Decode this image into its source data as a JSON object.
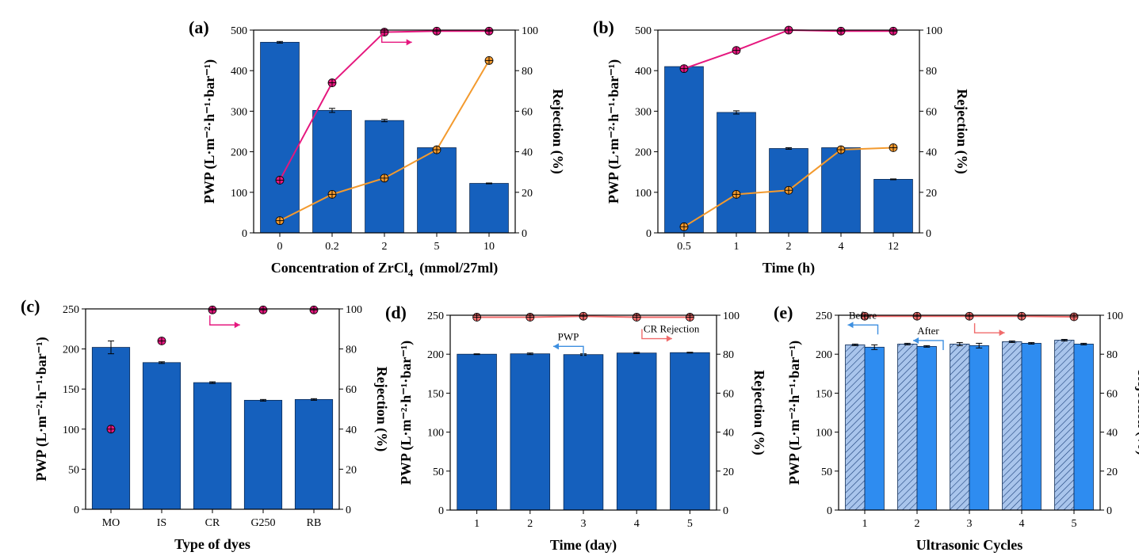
{
  "colors": {
    "bar": "#1560BD",
    "bar_light": "#2E8CF0",
    "bar_hatch_bg": "#A9C5EC",
    "dye_line": "#E5177E",
    "salt_line": "#F39A2E",
    "stability_line": "#F06B6B",
    "arrow_blue": "#3D8FE0",
    "arrow_red": "#F06B6B"
  },
  "chart_data": [
    {
      "type": "bar",
      "label": "(a)",
      "categories": [
        "0",
        "0.2",
        "2",
        "5",
        "10"
      ],
      "xlabel_main": "Concentration of ZrCl",
      "xlabel_sub": "4",
      "xlabel_rest": "(mmol/27ml)",
      "ylabel": "PWP (L·m⁻²·h⁻¹·bar⁻¹)",
      "y2label": "Rejection (%)",
      "ylim": [
        0,
        500
      ],
      "yticks": [
        0,
        100,
        200,
        300,
        400,
        500
      ],
      "y2lim": [
        0,
        100
      ],
      "y2ticks": [
        0,
        20,
        40,
        60,
        80,
        100
      ],
      "bars": [
        {
          "values": [
            470,
            302,
            277,
            210,
            122
          ],
          "errors": [
            2,
            5,
            3,
            2,
            1
          ]
        }
      ],
      "lines": [
        {
          "values": [
            26,
            74,
            99,
            99.5,
            99.5
          ],
          "color_key": "dye_line"
        },
        {
          "values": [
            6,
            19,
            27,
            41,
            85
          ],
          "color_key": "salt_line"
        }
      ],
      "annotations": [
        {
          "kind": "arrow",
          "direction": "right",
          "color_key": "dye_line",
          "at_category": 2.45,
          "at_value": 0.94
        }
      ]
    },
    {
      "type": "bar",
      "label": "(b)",
      "categories": [
        "0.5",
        "1",
        "2",
        "4",
        "12"
      ],
      "xlabel_main": "Time (h)",
      "ylabel": "PWP (L·m⁻²·h⁻¹·bar⁻¹)",
      "y2label": "Rejection (%)",
      "ylim": [
        0,
        500
      ],
      "yticks": [
        0,
        100,
        200,
        300,
        400,
        500
      ],
      "y2lim": [
        0,
        100
      ],
      "y2ticks": [
        0,
        20,
        40,
        60,
        80,
        100
      ],
      "bars": [
        {
          "values": [
            410,
            297,
            208,
            210,
            132
          ],
          "errors": [
            2,
            4,
            2,
            2,
            1
          ]
        }
      ],
      "lines": [
        {
          "values": [
            81,
            90,
            100,
            99.5,
            99.5
          ],
          "color_key": "dye_line"
        },
        {
          "values": [
            3,
            19,
            21,
            41,
            42
          ],
          "color_key": "salt_line"
        }
      ]
    },
    {
      "type": "bar",
      "label": "(c)",
      "categories": [
        "MO",
        "IS",
        "CR",
        "G250",
        "RB"
      ],
      "xlabel_main": "Type of dyes",
      "ylabel": "PWP (L·m⁻²·h⁻¹·bar⁻¹)",
      "y2label": "Rejection (%)",
      "ylim": [
        0,
        250
      ],
      "yticks": [
        0,
        50,
        100,
        150,
        200,
        250
      ],
      "y2lim": [
        0,
        100
      ],
      "y2ticks": [
        0,
        20,
        40,
        60,
        80,
        100
      ],
      "bars": [
        {
          "values": [
            202,
            183,
            158,
            136,
            137
          ],
          "errors": [
            8,
            1,
            1,
            1,
            1
          ]
        }
      ],
      "points": [
        {
          "values": [
            40,
            84,
            99.5,
            99.5,
            99.5
          ],
          "color_key": "dye_line"
        }
      ],
      "annotations": [
        {
          "kind": "arrow",
          "direction": "right",
          "color_key": "dye_line",
          "at_category": 2.45,
          "at_value": 0.92
        }
      ]
    },
    {
      "type": "bar",
      "label": "(d)",
      "categories": [
        "1",
        "2",
        "3",
        "4",
        "5"
      ],
      "xlabel_main": "Time (day)",
      "ylabel": "PWP (L·m⁻²·h⁻¹·bar⁻¹)",
      "y2label": "Rejection (%)",
      "ylim": [
        0,
        250
      ],
      "yticks": [
        0,
        50,
        100,
        150,
        200,
        250
      ],
      "y2lim": [
        0,
        100
      ],
      "y2ticks": [
        0,
        20,
        40,
        60,
        80,
        100
      ],
      "bars": [
        {
          "values": [
            200,
            200.5,
            199.5,
            201.5,
            202
          ],
          "errors": [
            0.5,
            1,
            1,
            0.8,
            0.5
          ]
        }
      ],
      "lines": [
        {
          "values": [
            99,
            99,
            99.5,
            99,
            99
          ],
          "color_key": "stability_line"
        }
      ],
      "annotations": [
        {
          "kind": "arrow",
          "direction": "left",
          "color_key": "arrow_blue",
          "text": "PWP",
          "at_category": 2.5,
          "at_value": 0.84
        },
        {
          "kind": "arrow",
          "direction": "right",
          "color_key": "arrow_red",
          "text": "CR Rejection",
          "at_category": 3.6,
          "at_value": 0.88
        }
      ]
    },
    {
      "type": "bar",
      "label": "(e)",
      "categories": [
        "1",
        "2",
        "3",
        "4",
        "5"
      ],
      "xlabel_main": "Ultrasonic Cycles",
      "ylabel": "PWP (L·m⁻²·h⁻¹·bar⁻¹)",
      "y2label": "Rejection (%)",
      "ylim": [
        0,
        250
      ],
      "yticks": [
        0,
        50,
        100,
        150,
        200,
        250
      ],
      "y2lim": [
        0,
        100
      ],
      "y2ticks": [
        0,
        20,
        40,
        60,
        80,
        100
      ],
      "bars": [
        {
          "name": "Before",
          "values": [
            212,
            213,
            213,
            216,
            218
          ],
          "errors": [
            1,
            1,
            2,
            1,
            1
          ],
          "style": "hatched"
        },
        {
          "name": "After",
          "values": [
            209,
            210,
            211,
            214,
            213
          ],
          "errors": [
            3,
            1,
            3,
            1,
            1
          ],
          "style": "solid"
        }
      ],
      "lines": [
        {
          "values": [
            99.5,
            99.5,
            99.5,
            99.5,
            99.2
          ],
          "color_key": "stability_line"
        }
      ],
      "annotations": [
        {
          "kind": "arrow",
          "direction": "left",
          "color_key": "arrow_blue",
          "text": "Before",
          "at_category": 0.75,
          "at_value": 0.95
        },
        {
          "kind": "arrow",
          "direction": "left",
          "color_key": "arrow_blue",
          "text": "After",
          "at_category": 2.0,
          "at_value": 0.87
        },
        {
          "kind": "arrow",
          "direction": "right",
          "color_key": "arrow_red",
          "at_category": 2.6,
          "at_value": 0.91
        }
      ]
    }
  ]
}
